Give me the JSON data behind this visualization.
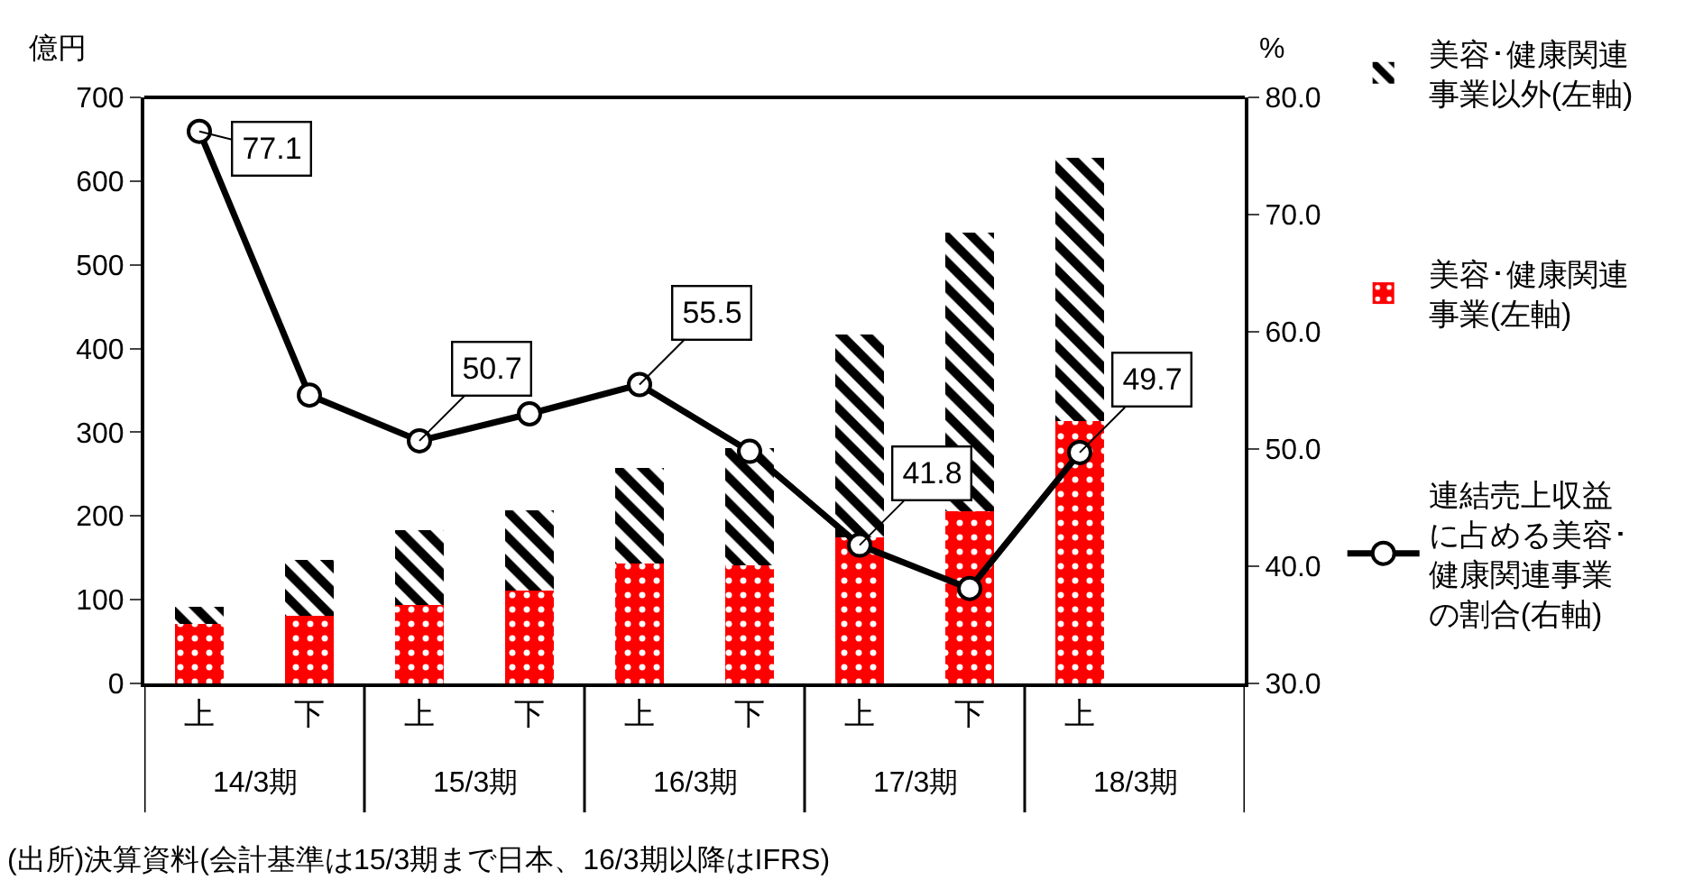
{
  "chart_data": {
    "type": "bar",
    "stacked": true,
    "categories": [
      "上",
      "下",
      "上",
      "下",
      "上",
      "下",
      "上",
      "下",
      "上",
      null
    ],
    "series": [
      {
        "name": "美容･健康関連事業(左軸)",
        "color": "#ff0000",
        "values": [
          71,
          81,
          94,
          111,
          143,
          141,
          175,
          206,
          313,
          null
        ]
      },
      {
        "name": "美容･健康関連事業以外(左軸)",
        "color": "#000000",
        "values": [
          21,
          67,
          89,
          96,
          114,
          140,
          242,
          333,
          315,
          null
        ]
      },
      {
        "name": "連結売上収益に占める美容･健康関連事業の割合(右軸)",
        "type": "line",
        "axis": "y2",
        "color": "#000000",
        "marker": "circle",
        "line_style": "solid",
        "values": [
          77.1,
          54.6,
          50.7,
          53.0,
          55.5,
          49.8,
          41.8,
          38.1,
          49.7,
          null
        ],
        "value_labels": [
          "77.1",
          null,
          "50.7",
          null,
          "55.5",
          null,
          "41.8",
          null,
          "49.7",
          null
        ]
      }
    ],
    "ylabel": "億円",
    "y2label": "%",
    "ylim": [
      0,
      700
    ],
    "yticks": [
      0,
      100,
      200,
      300,
      400,
      500,
      600,
      700
    ],
    "y2lim": [
      30,
      80
    ],
    "y2ticks": [
      {
        "value": 30,
        "label": "30.0"
      },
      {
        "value": 40,
        "label": "40.0"
      },
      {
        "value": 50,
        "label": "50.0"
      },
      {
        "value": 60,
        "label": "60.0"
      },
      {
        "value": 70,
        "label": "70.0"
      },
      {
        "value": 80,
        "label": "80.0"
      }
    ],
    "grid": false,
    "legend": "right",
    "annotations": [
      "14/3期",
      "15/3期",
      "16/3期",
      "17/3期",
      "18/3期",
      "(出所)決算資料(会計基準は15/3期まで日本、16/3期以降はIFRS)"
    ]
  }
}
